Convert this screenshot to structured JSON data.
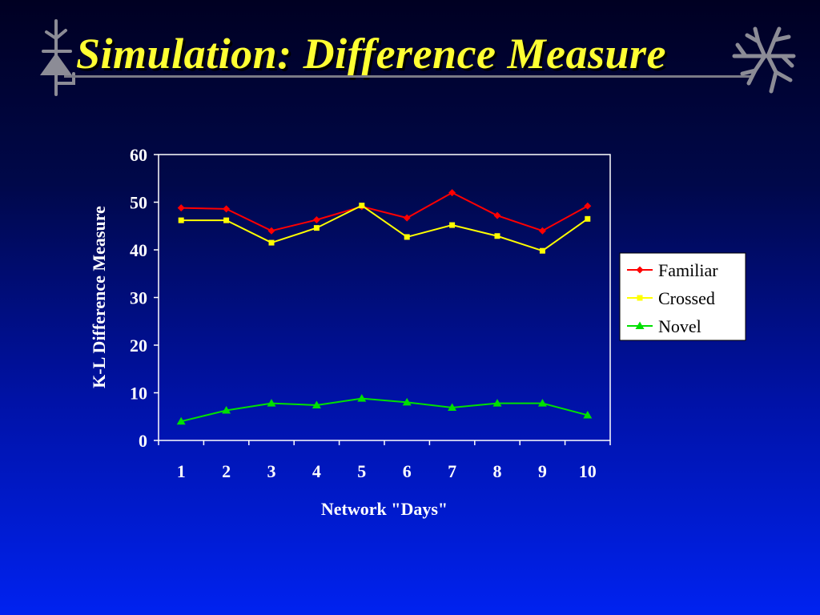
{
  "slide": {
    "title": "Simulation: Difference Measure",
    "left_icon": "neuron-triangle-icon",
    "right_icon": "neuron-dendrite-icon"
  },
  "colors": {
    "title": "#ffff33",
    "familiar": "#ff0000",
    "crossed": "#ffff00",
    "novel": "#00e000",
    "plot_border": "#ffffff"
  },
  "chart_data": {
    "type": "line",
    "title": "",
    "xlabel": "Network \"Days\"",
    "ylabel": "K-L Difference Measure",
    "categories": [
      "1",
      "2",
      "3",
      "4",
      "5",
      "6",
      "7",
      "8",
      "9",
      "10"
    ],
    "ylim": [
      0,
      60
    ],
    "yticks": [
      "0",
      "10",
      "20",
      "30",
      "40",
      "50",
      "60"
    ],
    "grid": false,
    "legend_position": "right",
    "series": [
      {
        "name": "Familiar",
        "marker": "diamond",
        "color": "#ff0000",
        "values": [
          48.8,
          48.6,
          44.0,
          46.3,
          49.1,
          46.7,
          52.0,
          47.2,
          44.0,
          49.2
        ]
      },
      {
        "name": "Crossed",
        "marker": "square",
        "color": "#ffff00",
        "values": [
          46.2,
          46.2,
          41.5,
          44.6,
          49.3,
          42.7,
          45.2,
          42.9,
          39.8,
          46.5
        ]
      },
      {
        "name": "Novel",
        "marker": "triangle",
        "color": "#00e000",
        "values": [
          4.0,
          6.3,
          7.8,
          7.4,
          8.8,
          8.0,
          6.9,
          7.8,
          7.8,
          5.3
        ]
      }
    ]
  }
}
